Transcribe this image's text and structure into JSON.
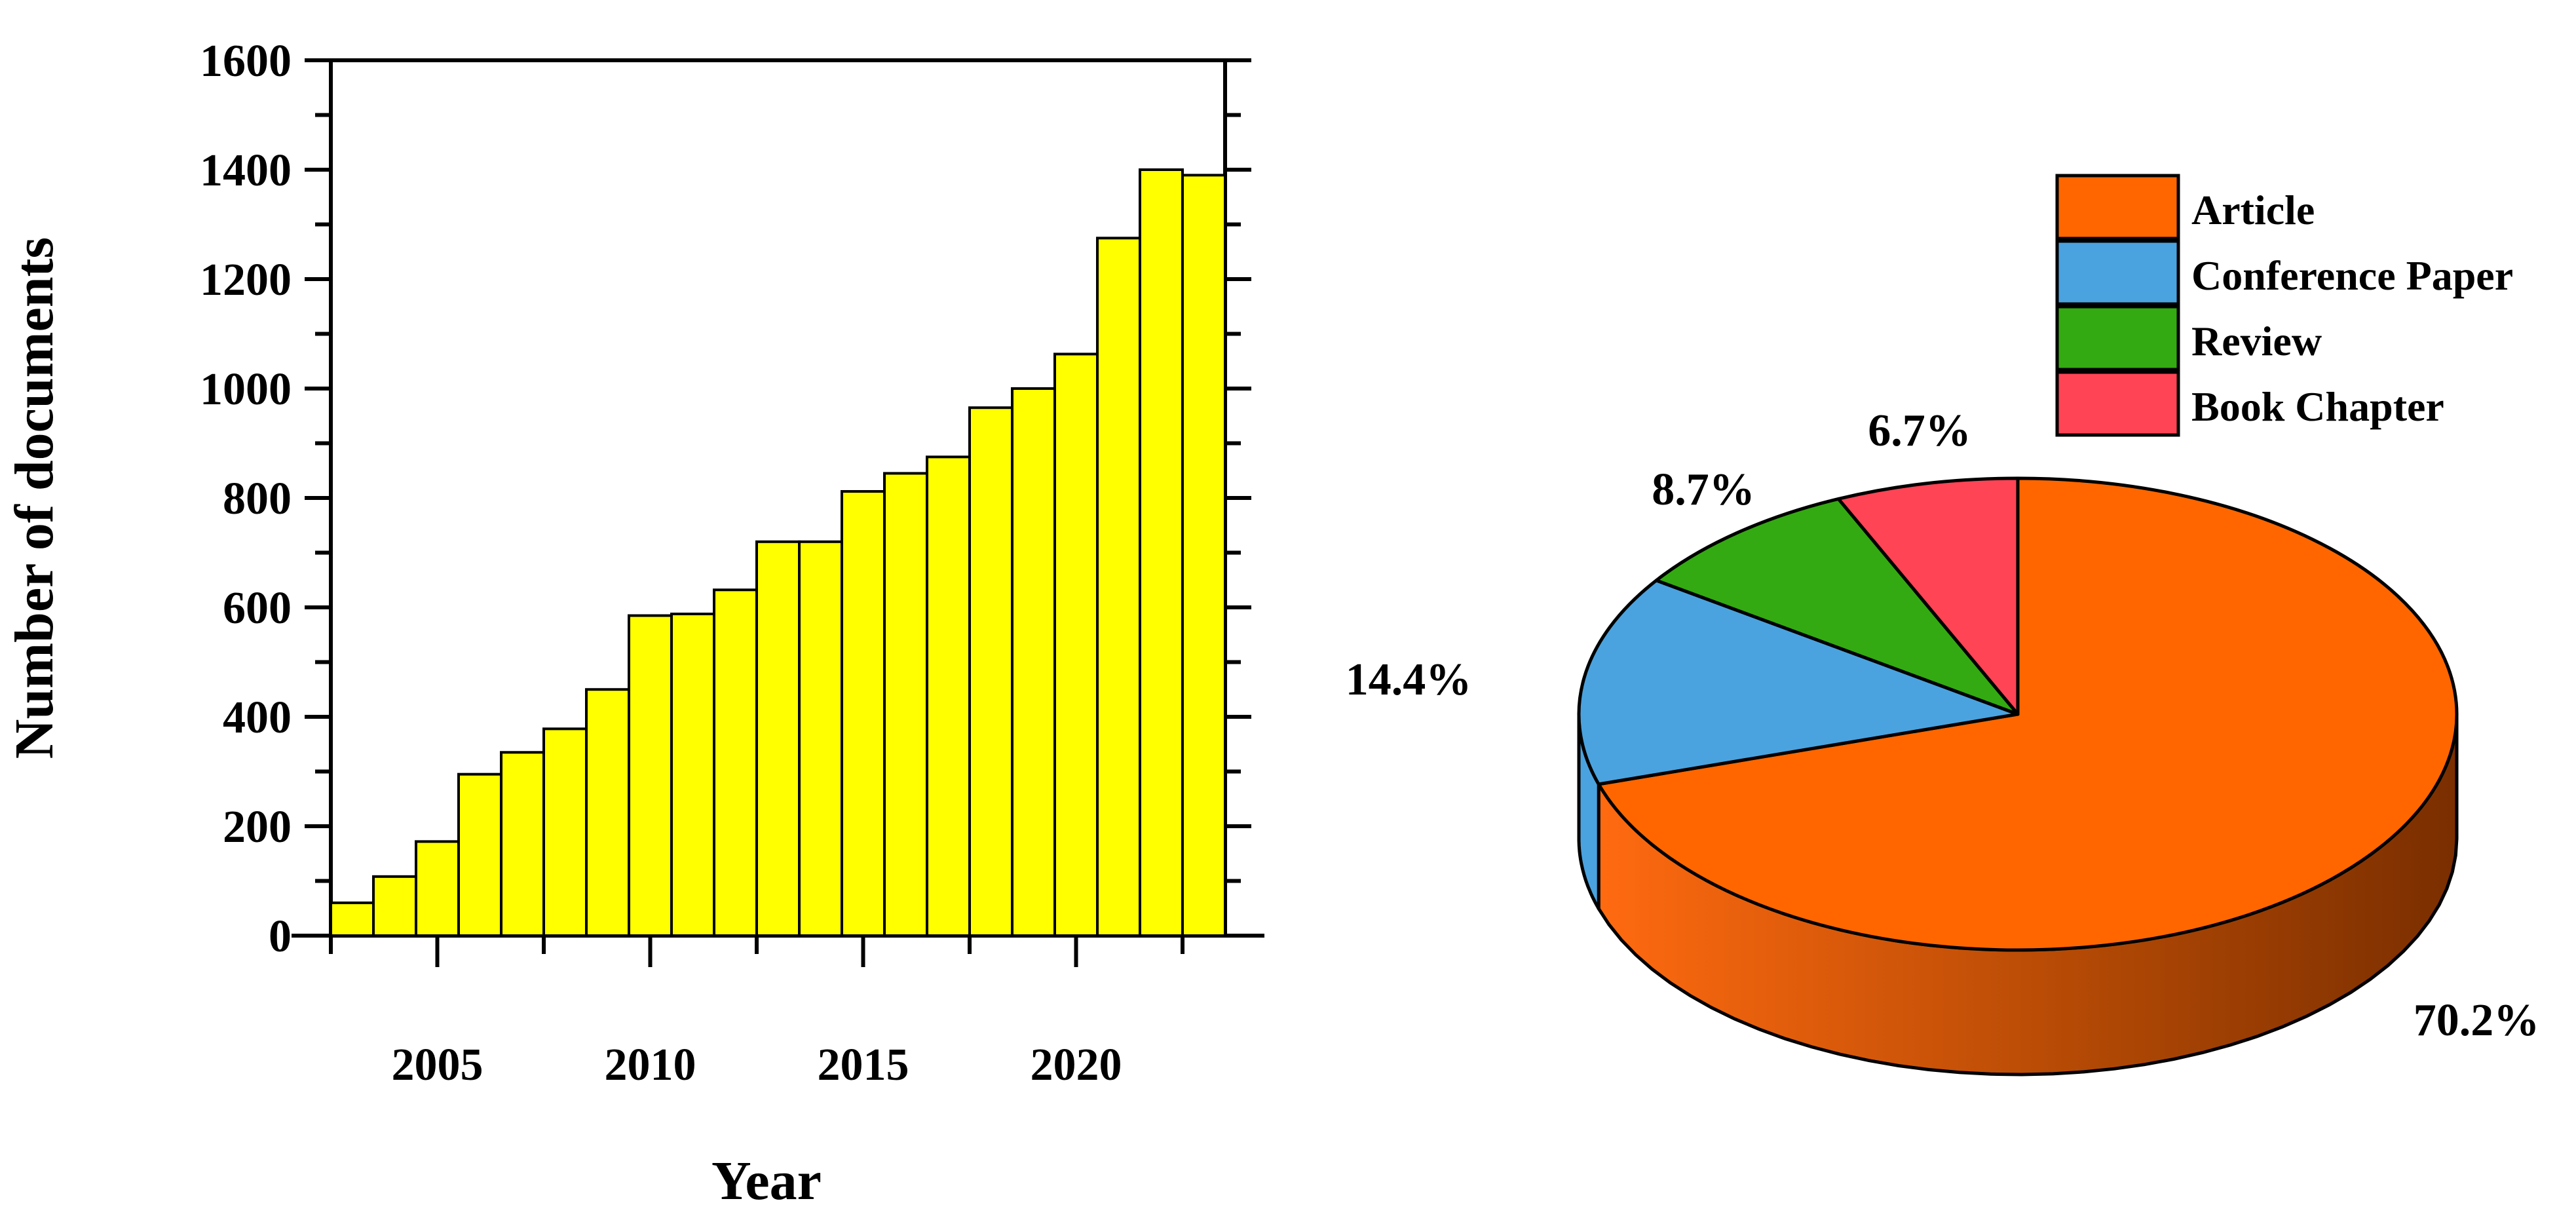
{
  "chart_data": [
    {
      "type": "bar",
      "xlabel": "Year",
      "ylabel": "Number of documents",
      "ylim": [
        0,
        1600
      ],
      "yticks": [
        0,
        200,
        400,
        600,
        800,
        1000,
        1200,
        1400,
        1600
      ],
      "xtick_labels": [
        "2005",
        "2010",
        "2015",
        "2020"
      ],
      "xtick_values": [
        2005,
        2010,
        2015,
        2020
      ],
      "xlim": [
        2002.5,
        2023.5
      ],
      "categories": [
        2003,
        2004,
        2005,
        2006,
        2007,
        2008,
        2009,
        2010,
        2011,
        2012,
        2013,
        2014,
        2015,
        2016,
        2017,
        2018,
        2019,
        2020,
        2021,
        2022,
        2023
      ],
      "values": [
        60,
        108,
        172,
        295,
        335,
        378,
        450,
        585,
        588,
        632,
        720,
        720,
        812,
        845,
        875,
        965,
        1000,
        1063,
        1275,
        1400,
        1390
      ],
      "bar_color": "#ffff00",
      "grid": false
    },
    {
      "type": "pie",
      "style": "3d",
      "legend_position": "top-right",
      "slices": [
        {
          "label": "Article",
          "value": 70.2,
          "display": "70.2%",
          "color": "#ff6600"
        },
        {
          "label": "Conference Paper",
          "value": 14.4,
          "display": "14.4%",
          "color": "#4aa3df"
        },
        {
          "label": "Review",
          "value": 8.7,
          "display": "8.7%",
          "color": "#33aa11"
        },
        {
          "label": "Book Chapter",
          "value": 6.7,
          "display": "6.7%",
          "color": "#ff4455"
        }
      ]
    }
  ]
}
